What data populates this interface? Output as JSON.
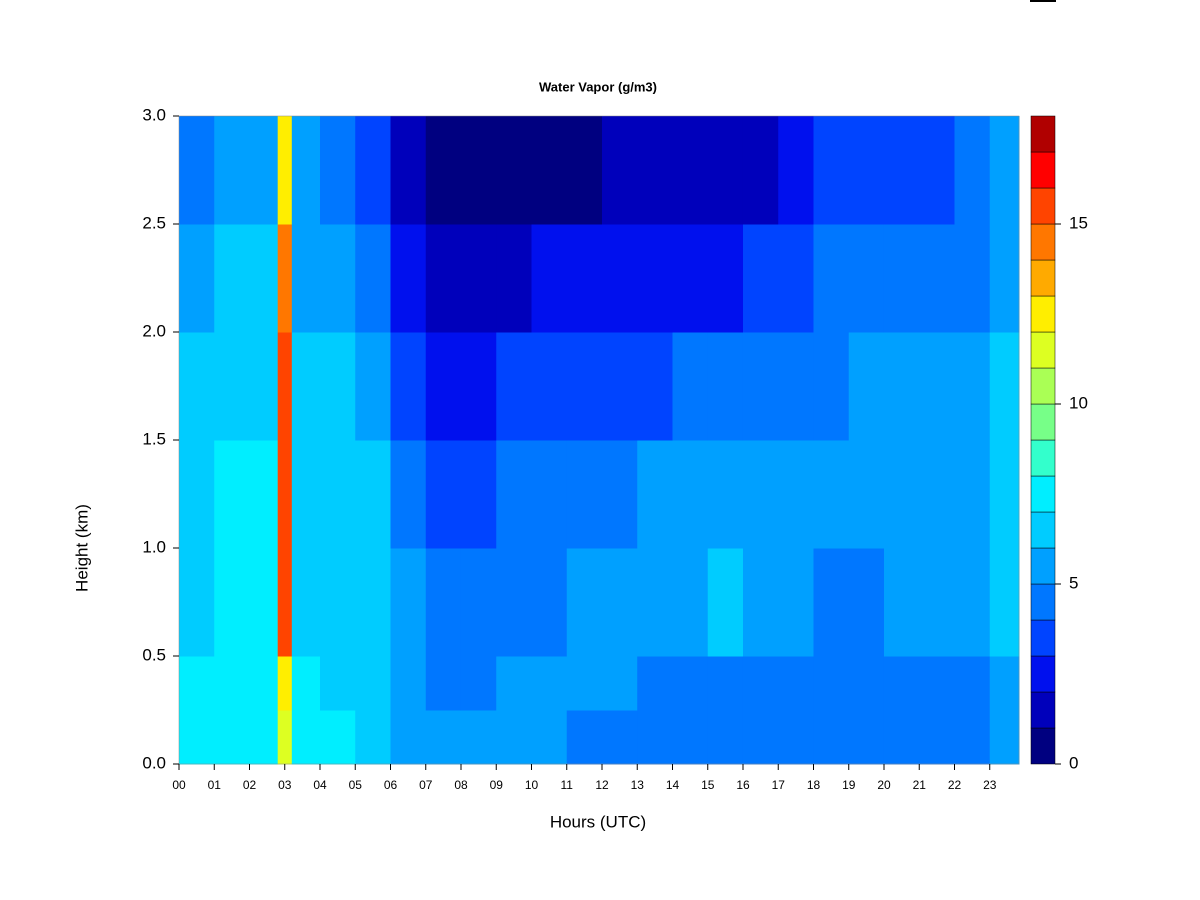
{
  "chart_data": {
    "type": "filled-contour",
    "title": "Water Vapor (g/m3)",
    "x_label": "Hours (UTC)",
    "y_label": "Height (km)",
    "xlim": [
      0,
      23.83
    ],
    "ylim": [
      0,
      3.0
    ],
    "xticks": [
      {
        "value": 0,
        "label": "00"
      },
      {
        "value": 1,
        "label": "01"
      },
      {
        "value": 2,
        "label": "02"
      },
      {
        "value": 3,
        "label": "03"
      },
      {
        "value": 4,
        "label": "04"
      },
      {
        "value": 5,
        "label": "05"
      },
      {
        "value": 6,
        "label": "06"
      },
      {
        "value": 7,
        "label": "07"
      },
      {
        "value": 8,
        "label": "08"
      },
      {
        "value": 9,
        "label": "09"
      },
      {
        "value": 10,
        "label": "10"
      },
      {
        "value": 11,
        "label": "11"
      },
      {
        "value": 12,
        "label": "12"
      },
      {
        "value": 13,
        "label": "13"
      },
      {
        "value": 14,
        "label": "14"
      },
      {
        "value": 15,
        "label": "15"
      },
      {
        "value": 16,
        "label": "16"
      },
      {
        "value": 17,
        "label": "17"
      },
      {
        "value": 18,
        "label": "18"
      },
      {
        "value": 19,
        "label": "19"
      },
      {
        "value": 20,
        "label": "20"
      },
      {
        "value": 21,
        "label": "21"
      },
      {
        "value": 22,
        "label": "22"
      },
      {
        "value": 23,
        "label": "23"
      }
    ],
    "yticks": [
      {
        "value": 0,
        "label": "0.0"
      },
      0.5,
      {
        "value": 1,
        "label": "1.0"
      },
      1.5,
      {
        "value": 2,
        "label": "2.0"
      },
      2.5,
      {
        "value": 3,
        "label": "3.0"
      }
    ],
    "x_edges": [
      0,
      1,
      2,
      2.8,
      3.2,
      4,
      5,
      6,
      7,
      8,
      9,
      10,
      11,
      12,
      13,
      14,
      15,
      16,
      17,
      18,
      19,
      20,
      21,
      22,
      23,
      23.83
    ],
    "y_edges": [
      0,
      0.25,
      0.5,
      1.0,
      1.5,
      2.0,
      2.5,
      3.0
    ],
    "z": [
      [
        7.5,
        7.8,
        7.6,
        11.5,
        7.2,
        7.0,
        6.8,
        5.5,
        5.2,
        5.3,
        5.5,
        5.5,
        4.8,
        4.6,
        4.5,
        4.5,
        4.5,
        4.5,
        4.6,
        4.5,
        4.4,
        4.3,
        4.4,
        4.5,
        5.5
      ],
      [
        7.2,
        7.6,
        7.5,
        12.5,
        7.0,
        6.6,
        6.5,
        5.2,
        4.5,
        4.5,
        5.0,
        5.2,
        5.3,
        5.2,
        4.8,
        4.7,
        4.7,
        4.6,
        4.6,
        4.4,
        4.4,
        4.5,
        4.6,
        4.7,
        5.6
      ],
      [
        6.8,
        7.3,
        7.3,
        15.5,
        6.8,
        6.5,
        6.3,
        5.0,
        4.3,
        4.2,
        4.5,
        4.6,
        5.2,
        5.3,
        5.5,
        5.8,
        6.0,
        5.8,
        5.5,
        4.7,
        4.8,
        5.2,
        5.3,
        5.4,
        6.2
      ],
      [
        6.8,
        7.4,
        7.0,
        15.8,
        6.6,
        6.3,
        6.0,
        4.5,
        3.5,
        3.6,
        4.0,
        4.2,
        4.6,
        4.8,
        5.0,
        5.2,
        5.4,
        5.3,
        5.0,
        5.2,
        5.4,
        5.5,
        5.5,
        5.6,
        6.5
      ],
      [
        6.5,
        6.8,
        6.6,
        15.0,
        6.4,
        6.0,
        5.4,
        3.5,
        2.5,
        2.8,
        3.0,
        3.2,
        3.6,
        3.8,
        3.9,
        4.0,
        4.1,
        4.2,
        4.4,
        4.6,
        5.0,
        5.0,
        5.2,
        5.3,
        6.0
      ],
      [
        5.8,
        6.0,
        6.0,
        14.0,
        5.8,
        5.3,
        4.5,
        2.5,
        1.5,
        1.6,
        1.8,
        2.0,
        2.2,
        2.4,
        2.5,
        2.6,
        2.8,
        3.0,
        3.3,
        4.0,
        4.5,
        4.2,
        4.6,
        4.8,
        5.5
      ],
      [
        4.8,
        5.0,
        5.0,
        12.5,
        5.2,
        4.5,
        3.8,
        1.8,
        0.5,
        0.5,
        0.6,
        0.8,
        0.9,
        1.0,
        1.1,
        1.2,
        1.5,
        1.8,
        2.5,
        3.2,
        3.8,
        3.5,
        3.8,
        4.0,
        5.0
      ]
    ],
    "levels": [
      0,
      1,
      2,
      3,
      4,
      5,
      6,
      7,
      8,
      9,
      10,
      11,
      12,
      13,
      14,
      15,
      16,
      17,
      18
    ],
    "level_colors": [
      "#000080",
      "#0000bb",
      "#0010ee",
      "#0044ff",
      "#0077ff",
      "#00a0ff",
      "#00ccff",
      "#00eeff",
      "#33ffcc",
      "#77ff88",
      "#aaff55",
      "#ddff22",
      "#ffee00",
      "#ffaa00",
      "#ff7700",
      "#ff4400",
      "#ff0000",
      "#b00000"
    ],
    "colorbar_ticks": [
      0,
      5,
      10,
      15
    ]
  }
}
